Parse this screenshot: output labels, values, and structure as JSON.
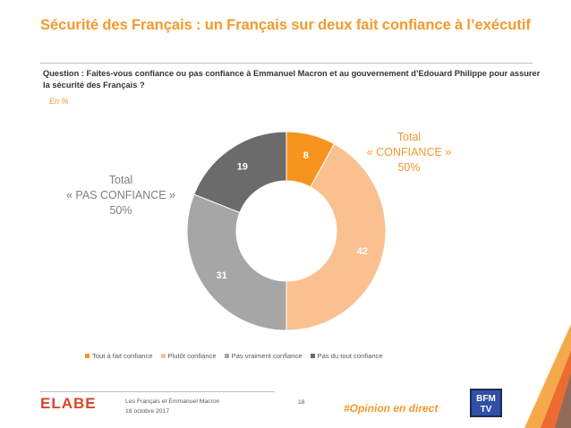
{
  "header": {
    "title_words": [
      "Sécurité",
      "des",
      "Français",
      ":",
      "un",
      "Français",
      "sur",
      "deux",
      "fait",
      "confiance",
      "à",
      "l’exécutif"
    ]
  },
  "question": "Question : Faites-vous confiance ou pas confiance à Emmanuel Macron et au gouvernement d’Edouard Philippe pour assurer la sécurité des Français ?",
  "unit": "En  %",
  "totals": {
    "confiance": {
      "label": "Total",
      "sublabel": "« CONFIANCE »",
      "value": "50%"
    },
    "pas_confiance": {
      "label": "Total",
      "sublabel": "« PAS CONFIANCE »",
      "value": "50%"
    }
  },
  "chart_data": {
    "type": "pie",
    "donut": true,
    "categories": [
      "Tout à fait confiance",
      "Plutôt confiance",
      "Pas vraiment confiance",
      "Pas du tout confiance"
    ],
    "values": [
      8,
      42,
      31,
      19
    ],
    "colors": [
      "#f7941d",
      "#fac090",
      "#a6a6a6",
      "#6b6b6b"
    ],
    "label_colors": [
      "#ffffff",
      "#ffffff",
      "#ffffff",
      "#ffffff"
    ],
    "legend_position": "bottom"
  },
  "footer": {
    "logo": "ELABE",
    "line1": "Les Français et Emmanuel Macron",
    "line2": "18 octobre 2017",
    "page": "18",
    "hashtag": "#Opinion en direct",
    "partner_logo_text": [
      "BFM",
      "TV"
    ]
  }
}
